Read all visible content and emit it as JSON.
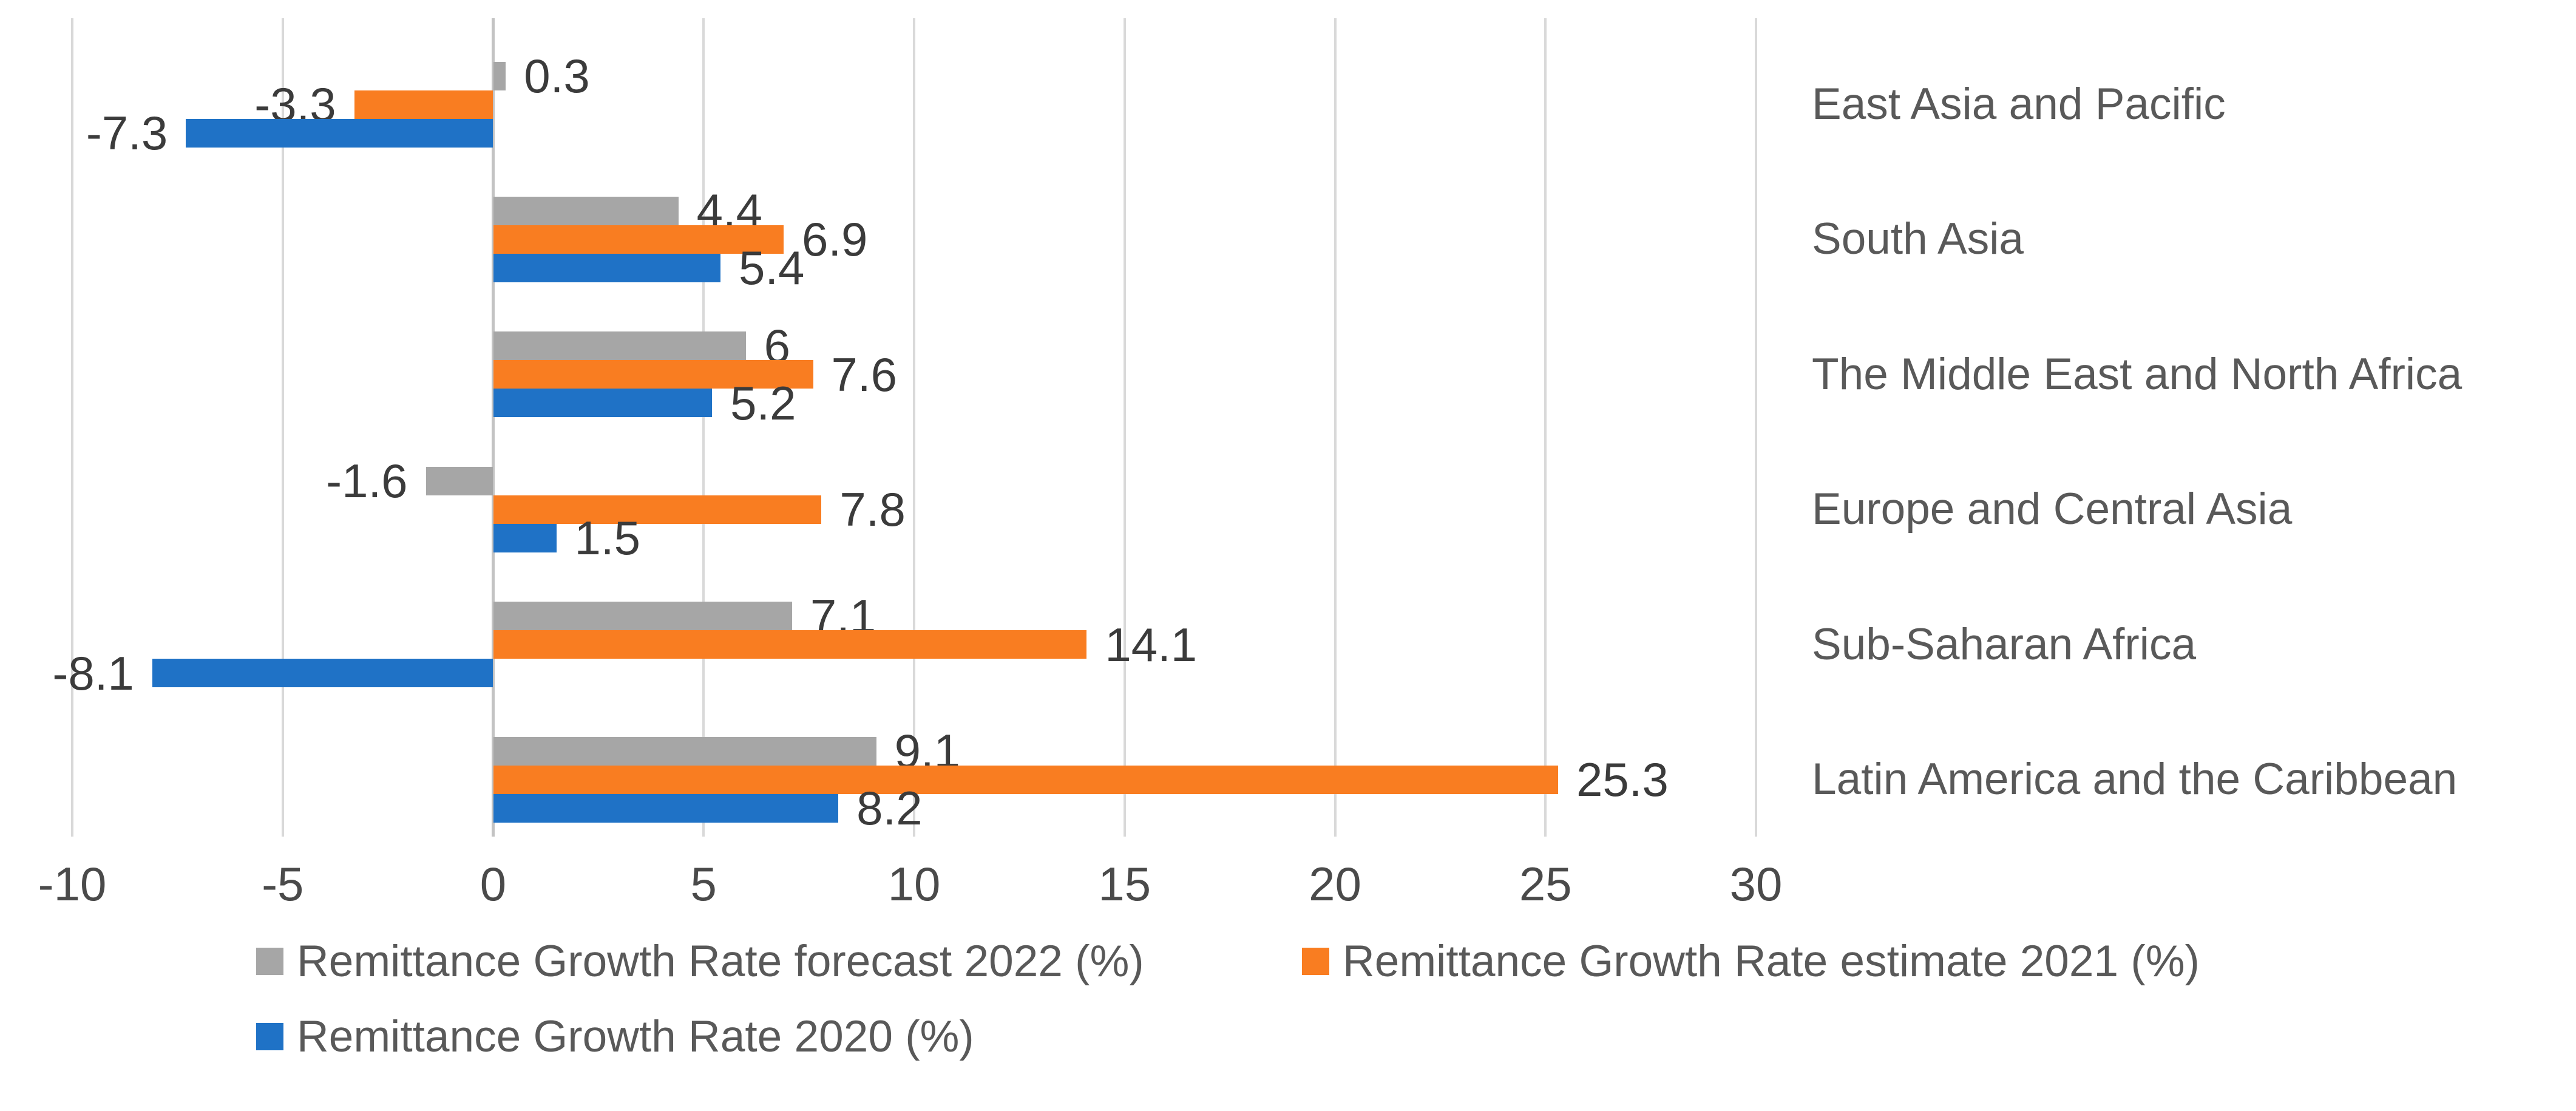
{
  "chart_data": {
    "type": "bar",
    "orientation": "horizontal",
    "title": "",
    "xlabel": "",
    "ylabel": "",
    "grid": true,
    "legend_position": "bottom",
    "categories": [
      "East Asia and Pacific",
      "South Asia",
      "The Middle East and North Africa",
      "Europe and Central Asia",
      "Sub-Saharan Africa",
      "Latin America and the Caribbean"
    ],
    "series": [
      {
        "key": "forecast-2022",
        "name": "Remittance Growth Rate forecast 2022 (%)",
        "color": "#A6A6A6",
        "values": [
          0.3,
          4.4,
          6,
          -1.6,
          7.1,
          9.1
        ],
        "labels": [
          "0.3",
          "4.4",
          "6",
          "-1.6",
          "7.1",
          "9.1"
        ]
      },
      {
        "key": "estimate-2021",
        "name": "Remittance Growth Rate estimate 2021 (%)",
        "color": "#F97D21",
        "values": [
          -3.3,
          6.9,
          7.6,
          7.8,
          14.1,
          25.3
        ],
        "labels": [
          "-3.3",
          "6.9",
          "7.6",
          "7.8",
          "14.1",
          "25.3"
        ]
      },
      {
        "key": "rate-2020",
        "name": "Remittance Growth Rate 2020 (%)",
        "color": "#1F72C6",
        "values": [
          -7.3,
          5.4,
          5.2,
          1.5,
          -8.1,
          8.2
        ],
        "labels": [
          "-7.3",
          "5.4",
          "5.2",
          "1.5",
          "-8.1",
          "8.2"
        ]
      }
    ],
    "x_axis": {
      "min": -10,
      "max": 30,
      "step": 5,
      "tick_labels": [
        "-10",
        "-5",
        "0",
        "5",
        "10",
        "15",
        "20",
        "25",
        "30"
      ]
    },
    "colors": {
      "gridline": "#D9D9D9",
      "zero_line": "#C3C3C3",
      "value_label_text": "#3B3B3B",
      "axis_tick_text": "#4A4A4A",
      "category_text": "#595959",
      "legend_text": "#595959",
      "background": "#FFFFFF"
    }
  }
}
